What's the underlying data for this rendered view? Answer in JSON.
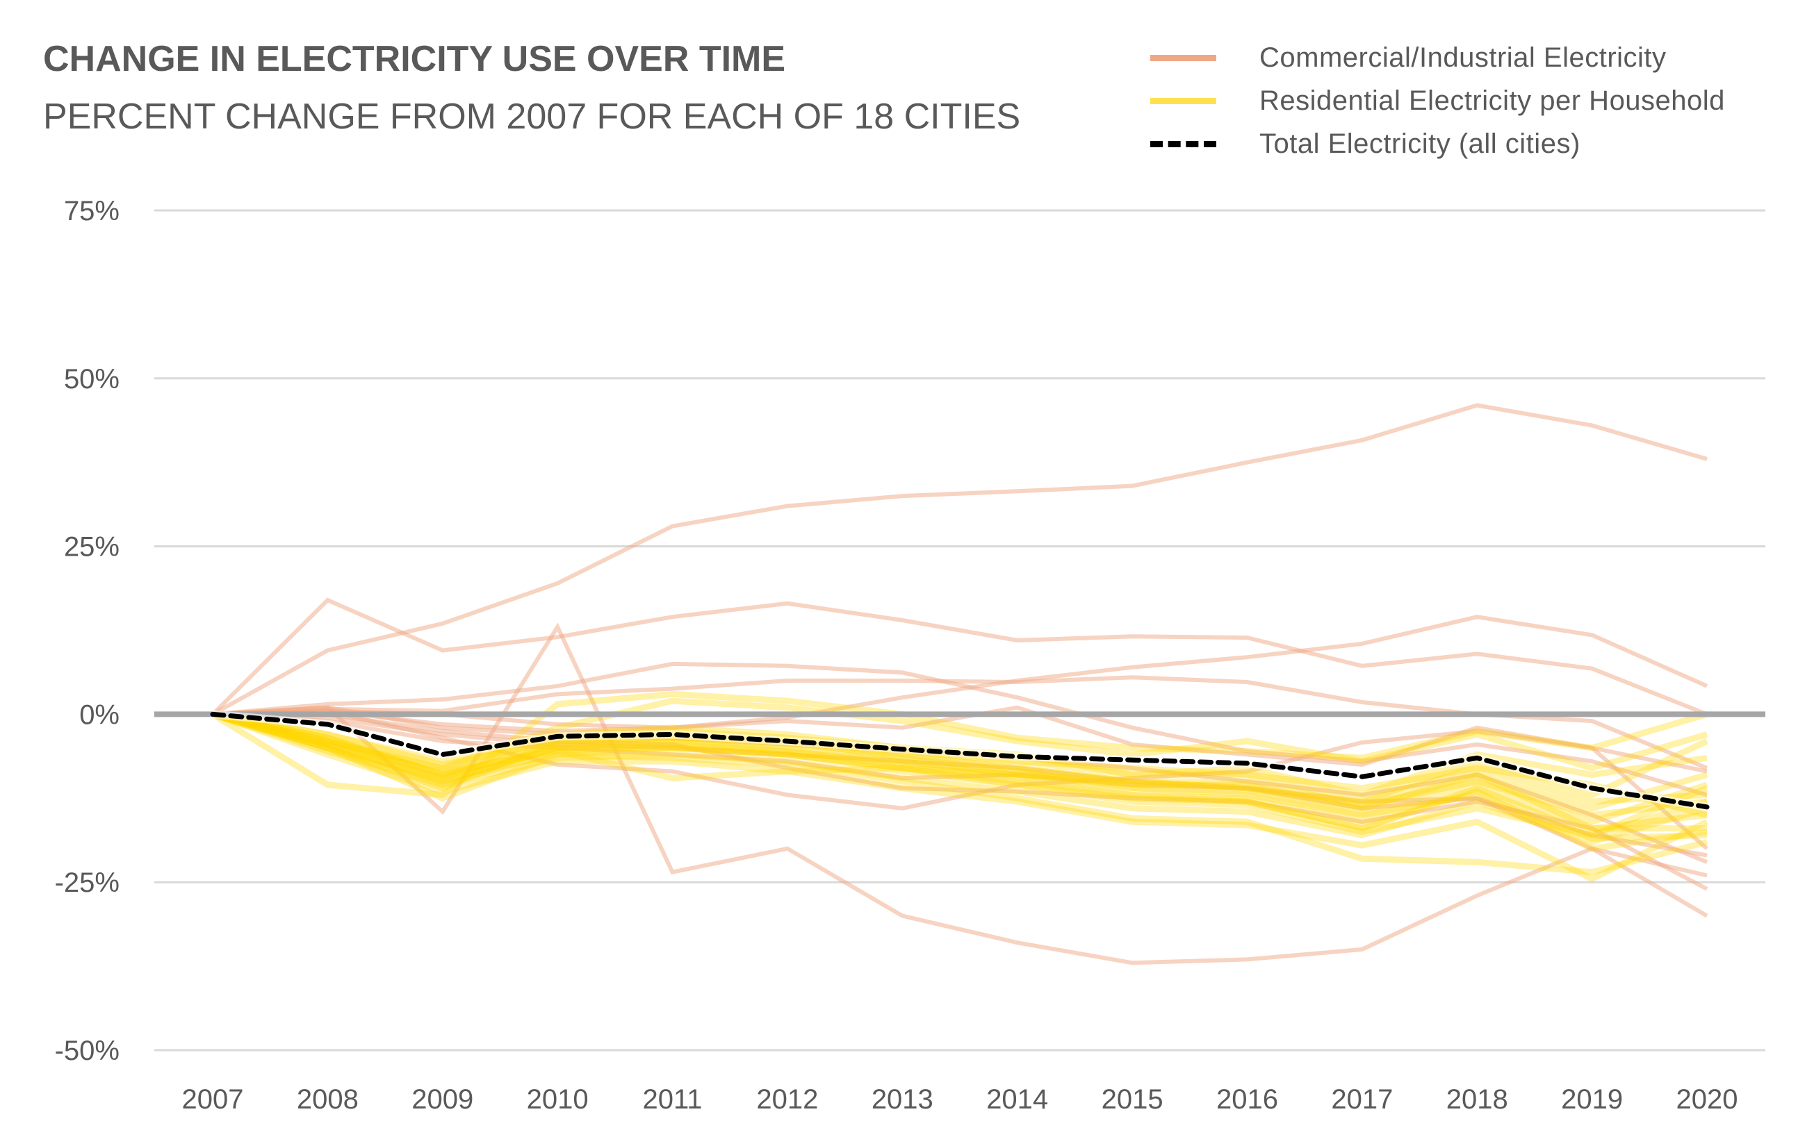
{
  "header": {
    "title": "CHANGE IN ELECTRICITY USE OVER TIME",
    "subtitle": "PERCENT CHANGE FROM 2007 FOR EACH OF 18 CITIES"
  },
  "legend": [
    {
      "label": "Commercial/Industrial  Electricity",
      "style": "commercial"
    },
    {
      "label": "Residential Electricity per Household",
      "style": "residential"
    },
    {
      "label": "Total Electricity (all cities)",
      "style": "total"
    }
  ],
  "colors": {
    "commercial": "#f0a884",
    "residential": "#ffd700",
    "total": "#000000",
    "zero_line": "#a6a6a6",
    "grid": "#d9d9d9"
  },
  "chart_data": {
    "type": "line",
    "title": "CHANGE IN ELECTRICITY USE OVER TIME",
    "subtitle": "PERCENT CHANGE FROM 2007 FOR EACH OF 18 CITIES",
    "xlabel": "",
    "ylabel": "",
    "x": [
      "2007",
      "2008",
      "2009",
      "2010",
      "2011",
      "2012",
      "2013",
      "2014",
      "2015",
      "2016",
      "2017",
      "2018",
      "2019",
      "2020"
    ],
    "ylim": [
      -50,
      75
    ],
    "yticks": [
      75,
      50,
      25,
      0,
      -25,
      -50
    ],
    "ytick_labels": [
      "75%",
      "50%",
      "25%",
      "0%",
      "-25%",
      "-50%"
    ],
    "grid": true,
    "legend_position": "top-right",
    "series": [
      {
        "name": "Total Electricity (all cities)",
        "group": "total",
        "values": [
          0,
          -1.5,
          -6,
          -3.3,
          -3,
          -4,
          -5.2,
          -6.3,
          -6.8,
          -7.3,
          -9.3,
          -6.5,
          -11,
          -13.8
        ]
      },
      {
        "name": "Commercial/Industrial Electricity",
        "group": "commercial",
        "values": [
          0,
          9.5,
          13.5,
          19.5,
          28,
          31,
          32.5,
          33.2,
          34,
          37.5,
          40.8,
          46,
          43,
          38
        ]
      },
      {
        "name": "Commercial/Industrial Electricity",
        "group": "commercial",
        "values": [
          0,
          17,
          9.5,
          11.5,
          14.5,
          16.5,
          14,
          11,
          11.6,
          11.4,
          7.2,
          9,
          6.8,
          0
        ]
      },
      {
        "name": "Commercial/Industrial Electricity",
        "group": "commercial",
        "values": [
          0,
          1.5,
          2.2,
          4.2,
          7.5,
          7.2,
          6.2,
          2.5,
          -2,
          -5.5,
          -7,
          -4.5,
          -7,
          -12
        ]
      },
      {
        "name": "Commercial/Industrial Electricity",
        "group": "commercial",
        "values": [
          0,
          0.8,
          0.5,
          3,
          3.8,
          5,
          5,
          4.8,
          5.5,
          4.8,
          1.8,
          0,
          -1,
          -8
        ]
      },
      {
        "name": "Commercial/Industrial Electricity",
        "group": "commercial",
        "values": [
          0,
          1,
          -14.5,
          13,
          -23.5,
          -20,
          -30,
          -34,
          -37,
          -36.5,
          -35,
          -27,
          -20,
          -30
        ]
      },
      {
        "name": "Commercial/Industrial Electricity",
        "group": "commercial",
        "values": [
          0,
          0.5,
          -1.5,
          -2.5,
          -2,
          -0.5,
          2.5,
          5,
          7,
          8.5,
          10.5,
          14.5,
          11.8,
          4.2
        ]
      },
      {
        "name": "Commercial/Industrial Electricity",
        "group": "commercial",
        "values": [
          0,
          0.5,
          -3.5,
          -7.5,
          -8.5,
          -12,
          -14,
          -10.5,
          -9.5,
          -8.5,
          -4.2,
          -2.5,
          -5,
          -8.5
        ]
      },
      {
        "name": "Commercial/Industrial Electricity",
        "group": "commercial",
        "values": [
          0,
          -1,
          -4,
          -5,
          -6,
          -7,
          -9.5,
          -9,
          -10.5,
          -11,
          -13,
          -12.5,
          -18,
          -21
        ]
      },
      {
        "name": "Commercial/Industrial Electricity",
        "group": "commercial",
        "values": [
          0,
          -0.5,
          -3,
          -4.5,
          -5,
          -6,
          -7,
          -8,
          -10,
          -11,
          -14,
          -12.5,
          -20,
          -24
        ]
      },
      {
        "name": "Commercial/Industrial Electricity",
        "group": "commercial",
        "values": [
          0,
          0,
          -2.5,
          -4,
          -4.5,
          -8,
          -11,
          -11.5,
          -12.5,
          -13,
          -16,
          -13,
          -17,
          -26
        ]
      },
      {
        "name": "Commercial/Industrial Electricity",
        "group": "commercial",
        "values": [
          0,
          0.5,
          0,
          -1.5,
          -2,
          -1,
          -2,
          1,
          -4.5,
          -6,
          -7.5,
          -2,
          -5,
          -20
        ]
      },
      {
        "name": "Commercial/Industrial Electricity",
        "group": "commercial",
        "values": [
          0,
          1,
          -2,
          -3,
          -3.5,
          -4.5,
          -5.5,
          -6.5,
          -8,
          -10,
          -12,
          -9,
          -15,
          -22
        ]
      },
      {
        "name": "Residential Electricity per Household",
        "group": "residential",
        "values": [
          0,
          -10.5,
          -12,
          1.5,
          3,
          2,
          0,
          -3.5,
          -5,
          -5.5,
          -6.5,
          -2.5,
          -5,
          0
        ]
      },
      {
        "name": "Residential Electricity per Household",
        "group": "residential",
        "values": [
          0,
          -4,
          -8,
          -2,
          2,
          1,
          -1,
          -4,
          -6,
          -4,
          -7,
          -3,
          -8,
          -3
        ]
      },
      {
        "name": "Residential Electricity per Household",
        "group": "residential",
        "values": [
          0,
          -3.5,
          -9,
          -3,
          -2,
          -3,
          -5,
          -6,
          -9,
          -9,
          -13,
          -7,
          -12,
          -4
        ]
      },
      {
        "name": "Residential Electricity per Household",
        "group": "residential",
        "values": [
          0,
          -5,
          -11,
          -4,
          -3,
          -4,
          -6,
          -8,
          -10,
          -11,
          -14,
          -9,
          -14,
          -9
        ]
      },
      {
        "name": "Residential Electricity per Household",
        "group": "residential",
        "values": [
          0,
          -4.5,
          -10,
          -5,
          -4,
          -5,
          -7,
          -9,
          -11,
          -12,
          -15,
          -10,
          -16,
          -10.5
        ]
      },
      {
        "name": "Residential Electricity per Household",
        "group": "residential",
        "values": [
          0,
          -3,
          -7.5,
          -4,
          -3.5,
          -4,
          -5.5,
          -7,
          -8,
          -9,
          -11,
          -8,
          -13,
          -12
        ]
      },
      {
        "name": "Residential Electricity per Household",
        "group": "residential",
        "values": [
          0,
          -5,
          -9.5,
          -6,
          -5,
          -6,
          -8,
          -10,
          -12,
          -13,
          -17,
          -11,
          -18,
          -13
        ]
      },
      {
        "name": "Residential Electricity per Household",
        "group": "residential",
        "values": [
          0,
          -4,
          -8.5,
          -5.5,
          -9.5,
          -8.5,
          -8,
          -9,
          -10,
          -11,
          -13,
          -8,
          -10.5,
          -15
        ]
      },
      {
        "name": "Residential Electricity per Household",
        "group": "residential",
        "values": [
          0,
          -5.5,
          -10.5,
          -6.5,
          -6,
          -7,
          -9.5,
          -11.5,
          -14,
          -14.5,
          -18,
          -13,
          -19,
          -14
        ]
      },
      {
        "name": "Residential Electricity per Household",
        "group": "residential",
        "values": [
          0,
          -6,
          -11.5,
          -7,
          -7,
          -8.5,
          -11,
          -13,
          -16,
          -16.5,
          -19.5,
          -16,
          -24.5,
          -16
        ]
      },
      {
        "name": "Residential Electricity per Household",
        "group": "residential",
        "values": [
          0,
          -3.5,
          -9,
          -4.5,
          -4,
          -5.5,
          -7.5,
          -9.5,
          -12,
          -12.5,
          -16,
          -11,
          -17,
          -17
        ]
      },
      {
        "name": "Residential Electricity per Household",
        "group": "residential",
        "values": [
          0,
          -4,
          -8,
          -3.5,
          -3,
          -4,
          -6.5,
          -8.5,
          -11,
          -11.5,
          -15,
          -12,
          -18.5,
          -18
        ]
      },
      {
        "name": "Residential Electricity per Household",
        "group": "residential",
        "values": [
          0,
          -5,
          -12.5,
          -6,
          -6.5,
          -7.5,
          -10,
          -12.5,
          -15.5,
          -16,
          -21.5,
          -22,
          -23.5,
          -19
        ]
      },
      {
        "name": "Residential Electricity per Household",
        "group": "residential",
        "values": [
          0,
          -4.5,
          -10,
          -5,
          -5,
          -6,
          -8.5,
          -10.5,
          -13,
          -13.5,
          -17.5,
          -14,
          -18,
          -11
        ]
      },
      {
        "name": "Residential Electricity per Household",
        "group": "residential",
        "values": [
          0,
          -3,
          -7,
          -3,
          -2.5,
          -3.5,
          -5,
          -7,
          -9,
          -8,
          -12,
          -6,
          -9,
          -6.5
        ]
      },
      {
        "name": "Residential Electricity per Household",
        "group": "residential",
        "values": [
          0,
          -4,
          -9,
          -5,
          -4.5,
          -5.5,
          -7,
          -9,
          -10.5,
          -10.5,
          -14,
          -9,
          -17,
          -15
        ]
      },
      {
        "name": "Residential Electricity per Household",
        "group": "residential",
        "values": [
          0,
          -5,
          -10.5,
          -5.5,
          -5,
          -6,
          -8,
          -10.5,
          -12.5,
          -13,
          -17,
          -11.5,
          -20,
          -17.5
        ]
      },
      {
        "name": "Residential Electricity per Household",
        "group": "residential",
        "values": [
          0,
          -4.5,
          -9.5,
          -4,
          -3.5,
          -4.5,
          -6,
          -8,
          -10,
          -10,
          -13.5,
          -10,
          -15,
          -13
        ]
      }
    ]
  }
}
